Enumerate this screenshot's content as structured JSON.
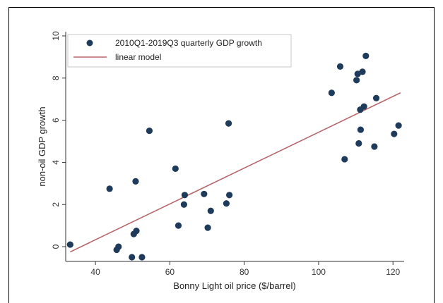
{
  "chart_data": {
    "type": "scatter",
    "xlabel": "Bonny Light oil price ($/barrel)",
    "ylabel": "non-oil GDP growth",
    "xlim": [
      32,
      123
    ],
    "ylim": [
      -0.7,
      10.2
    ],
    "xticks": [
      "40",
      "60",
      "80",
      "100",
      "120"
    ],
    "yticks": [
      "0",
      "2",
      "4",
      "6",
      "8",
      "10"
    ],
    "grid": false,
    "legend_position": "top-left",
    "series": [
      {
        "name": "2010Q1-2019Q3 quarterly GDP growth",
        "kind": "points",
        "color": "#1f3b5c",
        "points": [
          [
            33.2,
            0.1
          ],
          [
            43.8,
            2.75
          ],
          [
            45.7,
            -0.15
          ],
          [
            46.2,
            0.0
          ],
          [
            49.8,
            -0.5
          ],
          [
            50.3,
            0.6
          ],
          [
            50.8,
            3.1
          ],
          [
            51.0,
            0.75
          ],
          [
            52.5,
            -0.5
          ],
          [
            54.5,
            5.5
          ],
          [
            61.5,
            3.7
          ],
          [
            62.3,
            1.0
          ],
          [
            63.8,
            2.0
          ],
          [
            64.0,
            2.45
          ],
          [
            69.2,
            2.5
          ],
          [
            70.2,
            0.9
          ],
          [
            71.0,
            1.7
          ],
          [
            75.2,
            2.05
          ],
          [
            75.8,
            5.85
          ],
          [
            76.0,
            2.45
          ],
          [
            103.5,
            7.3
          ],
          [
            105.8,
            8.55
          ],
          [
            107.0,
            4.15
          ],
          [
            110.2,
            7.9
          ],
          [
            110.5,
            8.2
          ],
          [
            110.8,
            4.9
          ],
          [
            111.2,
            6.5
          ],
          [
            111.3,
            5.55
          ],
          [
            111.8,
            8.3
          ],
          [
            112.2,
            6.65
          ],
          [
            112.7,
            9.05
          ],
          [
            115.0,
            4.75
          ],
          [
            115.5,
            7.05
          ],
          [
            120.3,
            5.35
          ],
          [
            121.5,
            5.75
          ]
        ]
      },
      {
        "name": "linear model",
        "kind": "line",
        "color": "#b5676b",
        "points": [
          [
            33.2,
            -0.25
          ],
          [
            122.0,
            7.3
          ]
        ]
      }
    ]
  }
}
